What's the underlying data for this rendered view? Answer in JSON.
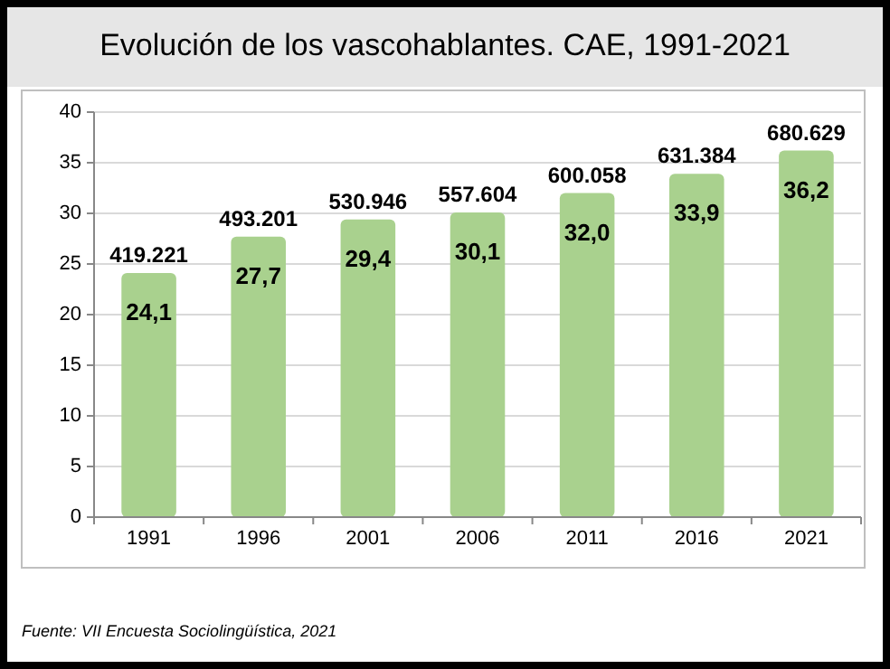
{
  "chart_data": {
    "type": "bar",
    "title": "Evolución de los vascohablantes. CAE, 1991-2021",
    "categories": [
      "1991",
      "1996",
      "2001",
      "2006",
      "2011",
      "2016",
      "2021"
    ],
    "values": [
      24.1,
      27.7,
      29.4,
      30.1,
      32.0,
      33.9,
      36.2
    ],
    "value_labels": [
      "24,1",
      "27,7",
      "29,4",
      "30,1",
      "32,0",
      "33,9",
      "36,2"
    ],
    "color": "#a9d18e",
    "ylim": [
      0,
      40
    ],
    "yticks": [
      0,
      5,
      10,
      15,
      20,
      25,
      30,
      35,
      40
    ],
    "grid": "y",
    "annotations": [
      {
        "text": "419.221",
        "x": "1991",
        "y": 24.1
      },
      {
        "text": "493.201",
        "x": "1996",
        "y": 27.7
      },
      {
        "text": "530.946",
        "x": "2001",
        "y": 29.4
      },
      {
        "text": "557.604",
        "x": "2006",
        "y": 30.1
      },
      {
        "text": "600.058",
        "x": "2011",
        "y": 32.0
      },
      {
        "text": "631.384",
        "x": "2016",
        "y": 33.9
      },
      {
        "text": "680.629",
        "x": "2021",
        "y": 36.2
      },
      "Fuente: VII Encuesta Sociolingüística, 2021"
    ]
  }
}
